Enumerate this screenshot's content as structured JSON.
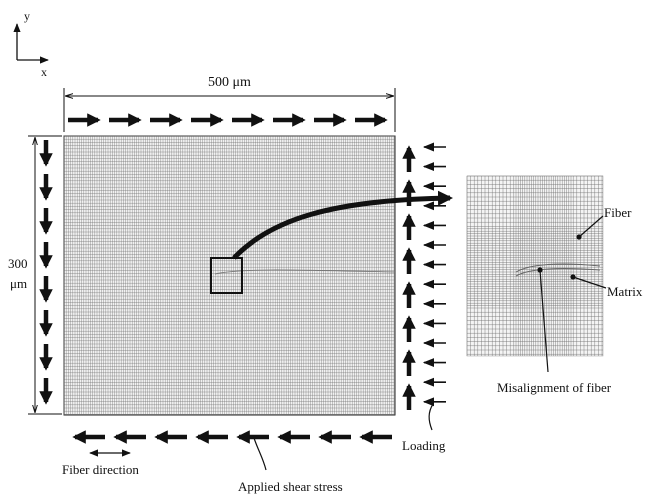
{
  "axes": {
    "y_label": "y",
    "x_label": "x"
  },
  "width_label": "500 μm",
  "height_label_line1": "300",
  "height_label_line2": "μm",
  "labels": {
    "fiber": "Fiber",
    "matrix": "Matrix",
    "misalignment": "Misalignment of fiber",
    "loading": "Loading",
    "fiber_direction": "Fiber direction",
    "applied_shear_stress": "Applied shear stress"
  },
  "colors": {
    "ink": "#111111",
    "mesh": "#555555",
    "background": "#ffffff"
  }
}
